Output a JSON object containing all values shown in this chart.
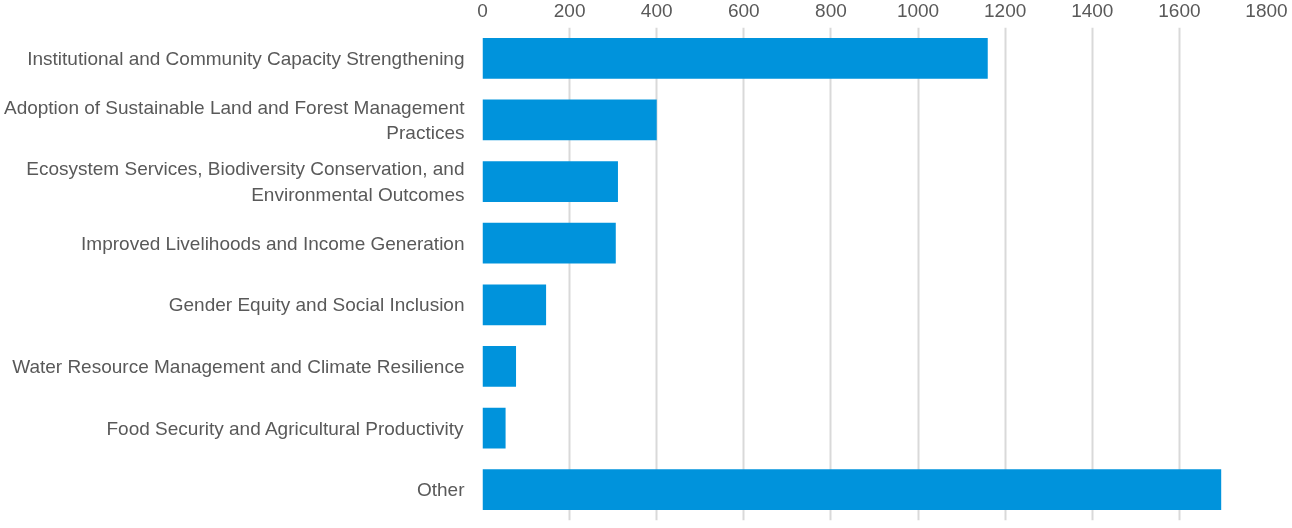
{
  "chart_data": {
    "type": "bar",
    "orientation": "horizontal",
    "categories": [
      "Institutional and Community Capacity Strengthening",
      "Adoption of Sustainable Land and Forest Management Practices",
      "Ecosystem Services, Biodiversity Conservation, and Environmental Outcomes",
      "Improved Livelihoods and Income Generation",
      "Gender Equity and Social Inclusion",
      "Water Resource Management and Climate Resilience",
      "Food Security and Agricultural Productivity",
      "Other"
    ],
    "values": [
      1160,
      400,
      311,
      306,
      146,
      77,
      53,
      1696
    ],
    "color": "#0093dc",
    "xlim": [
      0,
      1800
    ],
    "xticks": [
      0,
      200,
      400,
      600,
      800,
      1000,
      1200,
      1400,
      1600,
      1800
    ],
    "grid": "x"
  }
}
